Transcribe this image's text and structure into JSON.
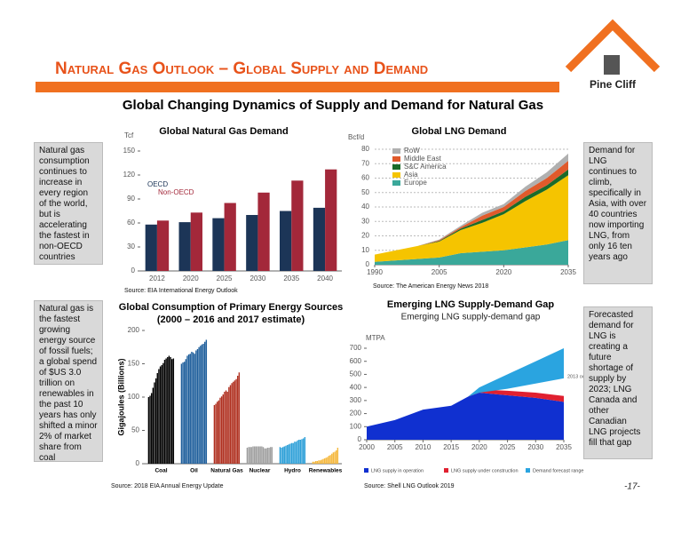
{
  "header": {
    "title": "Natural Gas Outlook – Global Supply and Demand",
    "logo": "Pine Cliff"
  },
  "subtitle": "Global Changing Dynamics of Supply and Demand for Natural Gas",
  "notes": [
    "Natural gas consumption continues to increase in every region of the world, but is accelerating the fastest in non-OECD countries",
    "Demand for LNG continues to climb, specifically in Asia, with over 40 countries now importing LNG, from only 16 ten years ago",
    "Natural gas is the fastest growing energy source of fossil fuels; a global spend of $US 3.0 trillion on renewables in the past 10 years has only shifted a minor 2% of market share from coal",
    "Forecasted demand for LNG is creating a future shortage of supply by 2023; LNG Canada and other Canadian LNG projects fill that gap"
  ],
  "page_number": "-17-",
  "chart_data": [
    {
      "type": "bar",
      "title": "Global Natural Gas Demand",
      "y_label": "Tcf",
      "source": "Source: EIA International Energy Outlook",
      "categories": [
        "2012",
        "2020",
        "2025",
        "2030",
        "2035",
        "2040"
      ],
      "series": [
        {
          "name": "OECD",
          "color": "#1c3557",
          "values": [
            58,
            61,
            66,
            70,
            75,
            79
          ]
        },
        {
          "name": "Non-OECD",
          "color": "#a3283a",
          "values": [
            63,
            73,
            85,
            98,
            113,
            127
          ]
        }
      ],
      "ylim": [
        0,
        150
      ],
      "yticks": [
        0,
        30,
        60,
        90,
        120,
        150
      ],
      "grid": false
    },
    {
      "type": "area",
      "title": "Global LNG Demand",
      "y_label": "Bcf/d",
      "source": "Source: The American Energy News 2018",
      "x": [
        1990,
        1995,
        2000,
        2005,
        2010,
        2015,
        2020,
        2025,
        2030,
        2035
      ],
      "series": [
        {
          "name": "Europe",
          "color": "#3aa89a",
          "values": [
            2,
            3,
            4,
            5,
            8,
            9,
            10,
            12,
            14,
            17
          ]
        },
        {
          "name": "Asia",
          "color": "#f5c400",
          "values": [
            5,
            7,
            9,
            11,
            16,
            20,
            25,
            32,
            38,
            45
          ]
        },
        {
          "name": "S&C America",
          "color": "#1a6b2a",
          "values": [
            0,
            0,
            0,
            0.5,
            1,
            2,
            2,
            3,
            3,
            4
          ]
        },
        {
          "name": "Middle East",
          "color": "#e05a2b",
          "values": [
            0,
            0,
            0,
            0.5,
            1,
            3,
            3,
            4,
            5,
            6
          ]
        },
        {
          "name": "RoW",
          "color": "#b0b0b0",
          "values": [
            0,
            0,
            0,
            0.5,
            1,
            2,
            2,
            3,
            4,
            5
          ]
        }
      ],
      "xlim": [
        1990,
        2035
      ],
      "xticks": [
        1990,
        2005,
        2020,
        2035
      ],
      "ylim": [
        0,
        80
      ],
      "yticks": [
        0,
        10,
        20,
        30,
        40,
        50,
        60,
        70,
        80
      ],
      "grid": true
    },
    {
      "type": "bar",
      "title": "Global Consumption of Primary Energy Sources",
      "subtitle": "(2000 – 2016 and 2017 estimate)",
      "y_label": "Gigajoules (Billions)",
      "source": "Source: 2018 EIA Annual Energy Update",
      "groups": [
        {
          "name": "Coal",
          "color": "#000000",
          "values": [
            100,
            102,
            106,
            114,
            122,
            128,
            136,
            142,
            146,
            148,
            151,
            156,
            158,
            160,
            162,
            160,
            157,
            158
          ]
        },
        {
          "name": "Oil",
          "color": "#1f5f9c",
          "values": [
            150,
            152,
            153,
            157,
            162,
            164,
            165,
            168,
            167,
            165,
            170,
            172,
            175,
            177,
            179,
            180,
            183,
            186
          ]
        },
        {
          "name": "Natural Gas",
          "color": "#b03020",
          "values": [
            88,
            90,
            93,
            95,
            99,
            101,
            104,
            108,
            110,
            108,
            115,
            118,
            121,
            123,
            125,
            127,
            132,
            137
          ]
        },
        {
          "name": "Nuclear",
          "color": "#a0a0a0",
          "values": [
            24,
            25,
            25,
            25,
            26,
            26,
            26,
            26,
            26,
            26,
            26,
            25,
            23,
            23,
            24,
            24,
            25,
            25
          ]
        },
        {
          "name": "Hydro",
          "color": "#2ea0d8",
          "values": [
            25,
            24,
            25,
            26,
            27,
            28,
            29,
            30,
            31,
            31,
            33,
            33,
            35,
            36,
            36,
            37,
            38,
            40
          ]
        },
        {
          "name": "Renewables",
          "color": "#f5b83d",
          "values": [
            3,
            3,
            4,
            4,
            5,
            5,
            6,
            7,
            8,
            9,
            10,
            12,
            13,
            15,
            17,
            18,
            20,
            24
          ]
        }
      ],
      "ylim": [
        0,
        200
      ],
      "yticks": [
        0,
        50,
        100,
        150,
        200
      ],
      "grid": false
    },
    {
      "type": "area",
      "title": "Emerging LNG Supply-Demand Gap",
      "subtitle": "Emerging LNG supply-demand gap",
      "y_label": "MTPA",
      "source": "Source: Shell LNG Outlook 2019",
      "annotation": "2013 outlook range",
      "x": [
        2000,
        2005,
        2010,
        2015,
        2018,
        2020,
        2025,
        2030,
        2035
      ],
      "series": [
        {
          "name": "LNG supply in operation",
          "color": "#1030d0",
          "values": [
            100,
            150,
            230,
            260,
            330,
            360,
            340,
            320,
            290
          ]
        },
        {
          "name": "LNG supply under construction",
          "color": "#e02030",
          "values": [
            null,
            null,
            null,
            null,
            0,
            25,
            35,
            40,
            45
          ]
        },
        {
          "name": "Demand forecast range",
          "color": "#2aa4e0",
          "low": [
            null,
            null,
            null,
            null,
            330,
            360,
            390,
            430,
            470
          ],
          "high": [
            null,
            null,
            null,
            null,
            330,
            400,
            500,
            600,
            700
          ]
        }
      ],
      "xlim": [
        2000,
        2035
      ],
      "xticks": [
        2000,
        2005,
        2010,
        2015,
        2020,
        2025,
        2030,
        2035
      ],
      "ylim": [
        0,
        700
      ],
      "yticks": [
        0,
        100,
        200,
        300,
        400,
        500,
        600,
        700
      ],
      "grid": false
    }
  ]
}
